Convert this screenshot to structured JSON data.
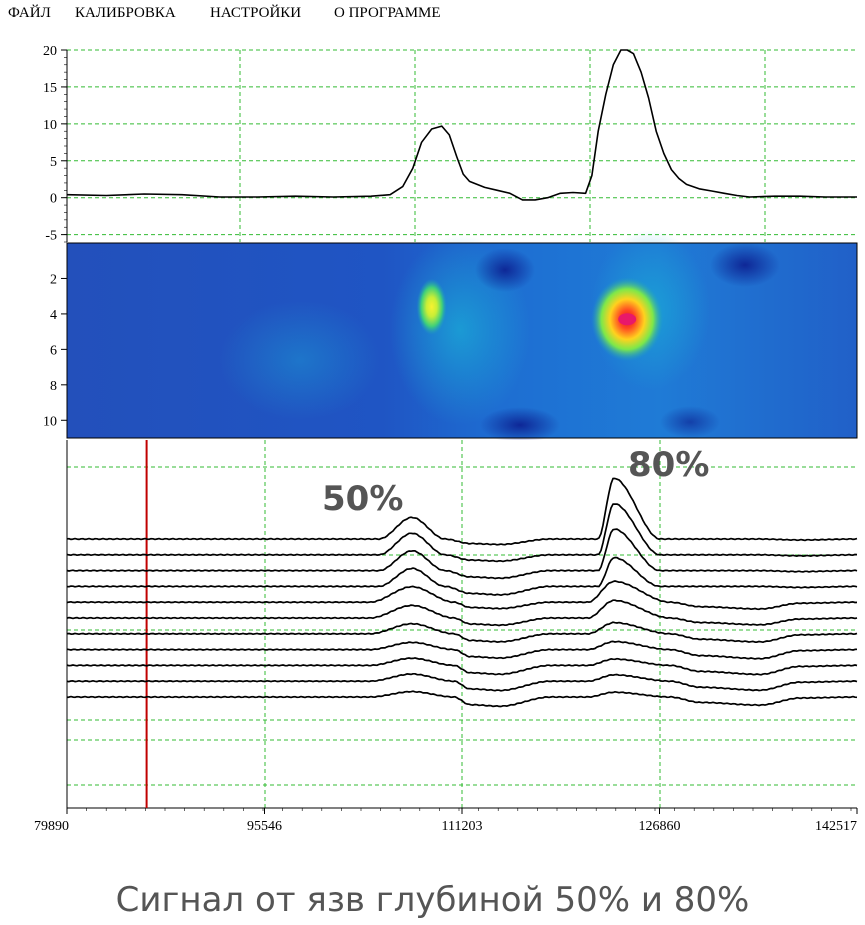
{
  "menu": {
    "items": [
      "ФАЙЛ",
      "КАЛИБРОВКА",
      "НАСТРОЙКИ",
      "О ПРОГРАММЕ"
    ]
  },
  "colors": {
    "trace": "#000000",
    "grid": "#33bb33",
    "cursor": "#c00000",
    "annotation": "#555555",
    "heatmap_low": "#1f3fb0",
    "heatmap_high": "#e0102a"
  },
  "chart_data": [
    {
      "type": "line",
      "yticks": [
        20,
        15,
        10,
        5,
        0,
        -5
      ],
      "ylim": [
        -6,
        20
      ],
      "xlim": [
        79890,
        142517
      ],
      "grid": true,
      "series": [
        {
          "x": [
            79890,
            83000,
            86000,
            89000,
            92000,
            95000,
            98000,
            101000,
            104000,
            105500,
            106500,
            107300,
            108000,
            108800,
            109600,
            110200,
            110800,
            111300,
            111800,
            112400,
            113000,
            114000,
            115000,
            116000,
            117000,
            118000,
            119000,
            120000,
            121000,
            121500,
            122000,
            122600,
            123200,
            123800,
            124300,
            124800,
            125400,
            126000,
            126600,
            127200,
            127800,
            128400,
            129000,
            130000,
            131000,
            132000,
            133000,
            134000,
            136000,
            138000,
            140000,
            142517
          ],
          "y": [
            0.4,
            0.3,
            0.5,
            0.4,
            0.1,
            0.1,
            0.2,
            0.1,
            0.2,
            0.4,
            1.5,
            4.0,
            7.5,
            9.3,
            9.7,
            8.5,
            5.5,
            3.2,
            2.2,
            1.8,
            1.4,
            1.0,
            0.6,
            -0.3,
            -0.3,
            0.0,
            0.6,
            0.7,
            0.6,
            3.0,
            9.0,
            14.0,
            18.0,
            20.0,
            20.0,
            19.5,
            17.0,
            13.5,
            9.0,
            6.0,
            3.8,
            2.6,
            1.8,
            1.2,
            0.9,
            0.6,
            0.3,
            0.1,
            0.2,
            0.2,
            0.1,
            0.1
          ]
        }
      ]
    },
    {
      "type": "heatmap",
      "yticks": [
        2,
        4,
        6,
        8,
        10
      ],
      "ylim": [
        0,
        11
      ],
      "xlim": [
        79890,
        142517
      ],
      "spots": [
        {
          "x": 108800,
          "y": 3.6,
          "intensity": 0.55
        },
        {
          "x": 124300,
          "y": 4.3,
          "intensity": 1.0
        }
      ]
    },
    {
      "type": "line",
      "xticks": [
        79890,
        95546,
        111203,
        126860,
        142517
      ],
      "xlim": [
        79890,
        142517
      ],
      "grid": true,
      "annotations": [
        "50%",
        "80%"
      ],
      "cursor_x": 86200,
      "series": [
        {
          "values": [
            0.0,
            6.0,
            -1.3,
            19.0,
            0.0
          ]
        },
        {
          "values": [
            0.0,
            6.0,
            -1.5,
            16.0,
            0.0
          ]
        },
        {
          "values": [
            0.0,
            5.5,
            -1.8,
            13.0,
            0.0
          ]
        },
        {
          "values": [
            0.0,
            5.0,
            -2.0,
            9.0,
            0.0
          ]
        },
        {
          "values": [
            0.0,
            4.3,
            -1.5,
            6.5,
            -1.5
          ]
        },
        {
          "values": [
            0.0,
            3.5,
            -1.7,
            5.5,
            -1.5
          ]
        },
        {
          "values": [
            0.0,
            2.8,
            -1.9,
            3.5,
            -1.8
          ]
        },
        {
          "values": [
            0.0,
            2.0,
            -2.0,
            2.5,
            -2.0
          ]
        },
        {
          "values": [
            0.0,
            2.0,
            -2.1,
            2.0,
            -2.0
          ]
        },
        {
          "values": [
            0.0,
            2.0,
            -2.2,
            2.0,
            -2.0
          ]
        },
        {
          "values": [
            0.0,
            1.5,
            -2.2,
            1.5,
            -1.8
          ]
        }
      ]
    }
  ],
  "caption": "Сигнал от язв глубиной 50% и 80%"
}
